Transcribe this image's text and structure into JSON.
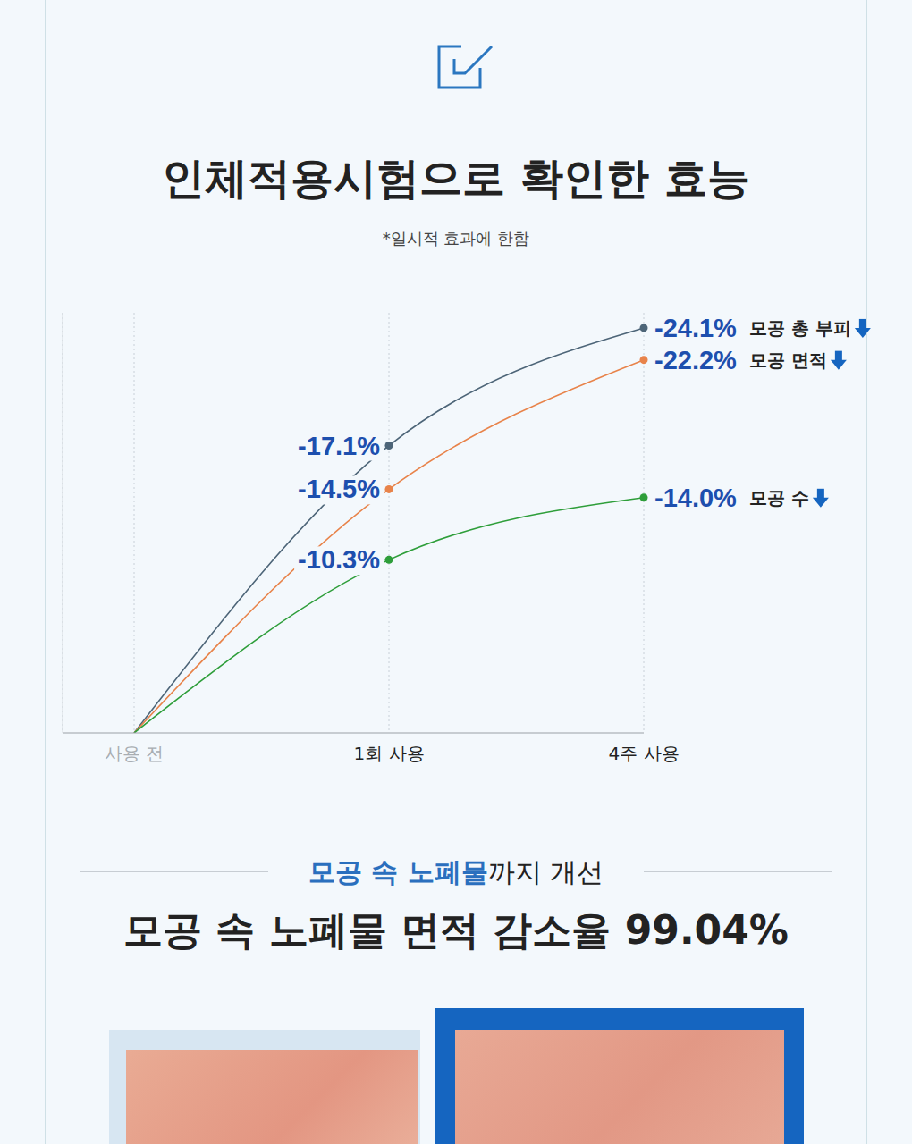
{
  "header": {
    "title": "인체적용시험으로 확인한 효능",
    "note": "*일시적 효과에 한함"
  },
  "chart_data": {
    "type": "line",
    "categories": [
      "사용 전",
      "1회 사용",
      "4주 사용"
    ],
    "series": [
      {
        "name": "모공 총 부피",
        "color": "#4d6578",
        "values": [
          0,
          -17.1,
          -24.1
        ],
        "value_labels": [
          null,
          "-17.1%",
          "-24.1%"
        ]
      },
      {
        "name": "모공 면적",
        "color": "#e8834a",
        "values": [
          0,
          -14.5,
          -22.2
        ],
        "value_labels": [
          null,
          "-14.5%",
          "-22.2%"
        ]
      },
      {
        "name": "모공 수",
        "color": "#2e9e3a",
        "values": [
          0,
          -10.3,
          -14.0
        ],
        "value_labels": [
          null,
          "-10.3%",
          "-14.0%"
        ]
      }
    ],
    "ylim": [
      0,
      -25
    ],
    "tick_labels": "x",
    "grid": "x",
    "data_labels": true,
    "marker": "circle",
    "line_style": "solid"
  },
  "section": {
    "kicker": {
      "highlight": "모공 속 노폐물",
      "rest": "까지 개선"
    },
    "headline": "모공 속 노폐물 면적 감소율 99.04%"
  }
}
